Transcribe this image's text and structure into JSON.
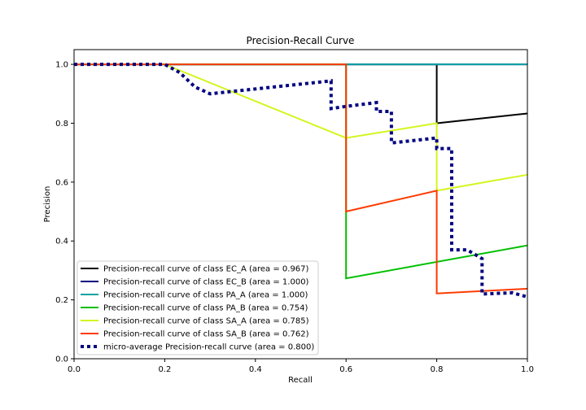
{
  "chart_data": {
    "type": "line",
    "title": "Precision-Recall Curve",
    "xlabel": "Recall",
    "ylabel": "Precision",
    "xlim": [
      0.0,
      1.0
    ],
    "ylim": [
      0.0,
      1.05
    ],
    "grid": false,
    "legend_position": "lower-left",
    "x_ticks": [
      "0.0",
      "0.2",
      "0.4",
      "0.6",
      "0.8",
      "1.0"
    ],
    "y_ticks": [
      "0.0",
      "0.2",
      "0.4",
      "0.6",
      "0.8",
      "1.0"
    ],
    "series": [
      {
        "name": "Precision-recall curve of class EC_A (area = 0.967)",
        "color": "#000000",
        "style": "solid",
        "x": [
          0.0,
          0.8,
          0.8,
          1.0
        ],
        "y": [
          1.0,
          1.0,
          0.8,
          0.833
        ]
      },
      {
        "name": "Precision-recall curve of class EC_B (area = 1.000)",
        "color": "#000080",
        "style": "solid",
        "x": [
          0.0,
          1.0
        ],
        "y": [
          1.0,
          1.0
        ]
      },
      {
        "name": "Precision-recall curve of class PA_A (area = 1.000)",
        "color": "#0aa3a3",
        "style": "solid",
        "x": [
          0.0,
          1.0
        ],
        "y": [
          1.0,
          1.0
        ]
      },
      {
        "name": "Precision-recall curve of class PA_B (area = 0.754)",
        "color": "#00c000",
        "style": "solid",
        "x": [
          0.0,
          0.6,
          0.6,
          1.0
        ],
        "y": [
          1.0,
          1.0,
          0.273,
          0.385
        ]
      },
      {
        "name": "Precision-recall curve of class SA_A (area = 0.785)",
        "color": "#d4f51e",
        "style": "solid",
        "x": [
          0.0,
          0.2,
          0.6,
          0.8,
          0.8,
          1.0
        ],
        "y": [
          1.0,
          1.0,
          0.75,
          0.8,
          0.571,
          0.625
        ]
      },
      {
        "name": "Precision-recall curve of class SA_B (area = 0.762)",
        "color": "#ff3a00",
        "style": "solid",
        "x": [
          0.0,
          0.6,
          0.6,
          0.8,
          0.8,
          1.0
        ],
        "y": [
          1.0,
          1.0,
          0.5,
          0.571,
          0.222,
          0.238
        ]
      },
      {
        "name": "micro-average Precision-recall curve (area = 0.800)",
        "color": "#000080",
        "style": "dotted",
        "x": [
          0.0,
          0.2,
          0.233,
          0.267,
          0.3,
          0.567,
          0.567,
          0.6,
          0.667,
          0.667,
          0.7,
          0.7,
          0.8,
          0.8,
          0.833,
          0.833,
          0.867,
          0.9,
          0.9,
          0.967,
          1.0
        ],
        "y": [
          1.0,
          1.0,
          0.972,
          0.923,
          0.9,
          0.944,
          0.85,
          0.857,
          0.87,
          0.84,
          0.84,
          0.733,
          0.75,
          0.714,
          0.714,
          0.37,
          0.37,
          0.34,
          0.22,
          0.224,
          0.21
        ]
      }
    ]
  }
}
